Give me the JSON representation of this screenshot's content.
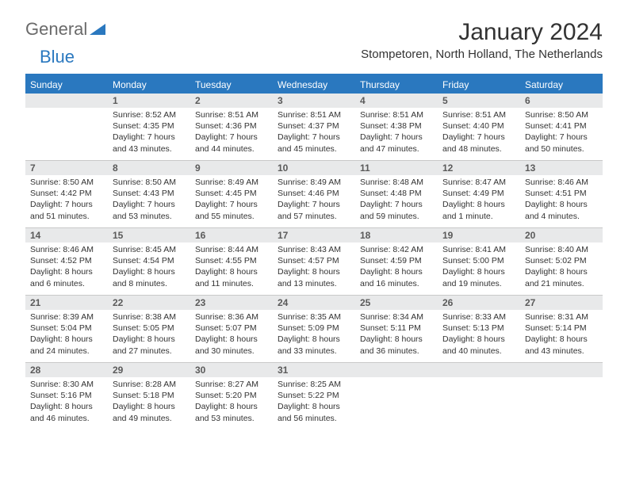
{
  "logo": {
    "text1": "General",
    "text2": "Blue"
  },
  "title": "January 2024",
  "location": "Stompetoren, North Holland, The Netherlands",
  "colors": {
    "brand": "#2a78bf",
    "header_text": "#ffffff",
    "daynum_bg": "#e8e9ea",
    "daynum_text": "#5a5a5a",
    "body_text": "#333333",
    "grid_line": "#c9c9c9",
    "page_bg": "#ffffff"
  },
  "day_names": [
    "Sunday",
    "Monday",
    "Tuesday",
    "Wednesday",
    "Thursday",
    "Friday",
    "Saturday"
  ],
  "weeks": [
    [
      {
        "n": ""
      },
      {
        "n": "1",
        "sr": "8:52 AM",
        "ss": "4:35 PM",
        "dl": "7 hours and 43 minutes."
      },
      {
        "n": "2",
        "sr": "8:51 AM",
        "ss": "4:36 PM",
        "dl": "7 hours and 44 minutes."
      },
      {
        "n": "3",
        "sr": "8:51 AM",
        "ss": "4:37 PM",
        "dl": "7 hours and 45 minutes."
      },
      {
        "n": "4",
        "sr": "8:51 AM",
        "ss": "4:38 PM",
        "dl": "7 hours and 47 minutes."
      },
      {
        "n": "5",
        "sr": "8:51 AM",
        "ss": "4:40 PM",
        "dl": "7 hours and 48 minutes."
      },
      {
        "n": "6",
        "sr": "8:50 AM",
        "ss": "4:41 PM",
        "dl": "7 hours and 50 minutes."
      }
    ],
    [
      {
        "n": "7",
        "sr": "8:50 AM",
        "ss": "4:42 PM",
        "dl": "7 hours and 51 minutes."
      },
      {
        "n": "8",
        "sr": "8:50 AM",
        "ss": "4:43 PM",
        "dl": "7 hours and 53 minutes."
      },
      {
        "n": "9",
        "sr": "8:49 AM",
        "ss": "4:45 PM",
        "dl": "7 hours and 55 minutes."
      },
      {
        "n": "10",
        "sr": "8:49 AM",
        "ss": "4:46 PM",
        "dl": "7 hours and 57 minutes."
      },
      {
        "n": "11",
        "sr": "8:48 AM",
        "ss": "4:48 PM",
        "dl": "7 hours and 59 minutes."
      },
      {
        "n": "12",
        "sr": "8:47 AM",
        "ss": "4:49 PM",
        "dl": "8 hours and 1 minute."
      },
      {
        "n": "13",
        "sr": "8:46 AM",
        "ss": "4:51 PM",
        "dl": "8 hours and 4 minutes."
      }
    ],
    [
      {
        "n": "14",
        "sr": "8:46 AM",
        "ss": "4:52 PM",
        "dl": "8 hours and 6 minutes."
      },
      {
        "n": "15",
        "sr": "8:45 AM",
        "ss": "4:54 PM",
        "dl": "8 hours and 8 minutes."
      },
      {
        "n": "16",
        "sr": "8:44 AM",
        "ss": "4:55 PM",
        "dl": "8 hours and 11 minutes."
      },
      {
        "n": "17",
        "sr": "8:43 AM",
        "ss": "4:57 PM",
        "dl": "8 hours and 13 minutes."
      },
      {
        "n": "18",
        "sr": "8:42 AM",
        "ss": "4:59 PM",
        "dl": "8 hours and 16 minutes."
      },
      {
        "n": "19",
        "sr": "8:41 AM",
        "ss": "5:00 PM",
        "dl": "8 hours and 19 minutes."
      },
      {
        "n": "20",
        "sr": "8:40 AM",
        "ss": "5:02 PM",
        "dl": "8 hours and 21 minutes."
      }
    ],
    [
      {
        "n": "21",
        "sr": "8:39 AM",
        "ss": "5:04 PM",
        "dl": "8 hours and 24 minutes."
      },
      {
        "n": "22",
        "sr": "8:38 AM",
        "ss": "5:05 PM",
        "dl": "8 hours and 27 minutes."
      },
      {
        "n": "23",
        "sr": "8:36 AM",
        "ss": "5:07 PM",
        "dl": "8 hours and 30 minutes."
      },
      {
        "n": "24",
        "sr": "8:35 AM",
        "ss": "5:09 PM",
        "dl": "8 hours and 33 minutes."
      },
      {
        "n": "25",
        "sr": "8:34 AM",
        "ss": "5:11 PM",
        "dl": "8 hours and 36 minutes."
      },
      {
        "n": "26",
        "sr": "8:33 AM",
        "ss": "5:13 PM",
        "dl": "8 hours and 40 minutes."
      },
      {
        "n": "27",
        "sr": "8:31 AM",
        "ss": "5:14 PM",
        "dl": "8 hours and 43 minutes."
      }
    ],
    [
      {
        "n": "28",
        "sr": "8:30 AM",
        "ss": "5:16 PM",
        "dl": "8 hours and 46 minutes."
      },
      {
        "n": "29",
        "sr": "8:28 AM",
        "ss": "5:18 PM",
        "dl": "8 hours and 49 minutes."
      },
      {
        "n": "30",
        "sr": "8:27 AM",
        "ss": "5:20 PM",
        "dl": "8 hours and 53 minutes."
      },
      {
        "n": "31",
        "sr": "8:25 AM",
        "ss": "5:22 PM",
        "dl": "8 hours and 56 minutes."
      },
      {
        "n": ""
      },
      {
        "n": ""
      },
      {
        "n": ""
      }
    ]
  ],
  "labels": {
    "sunrise": "Sunrise:",
    "sunset": "Sunset:",
    "daylight": "Daylight:"
  }
}
